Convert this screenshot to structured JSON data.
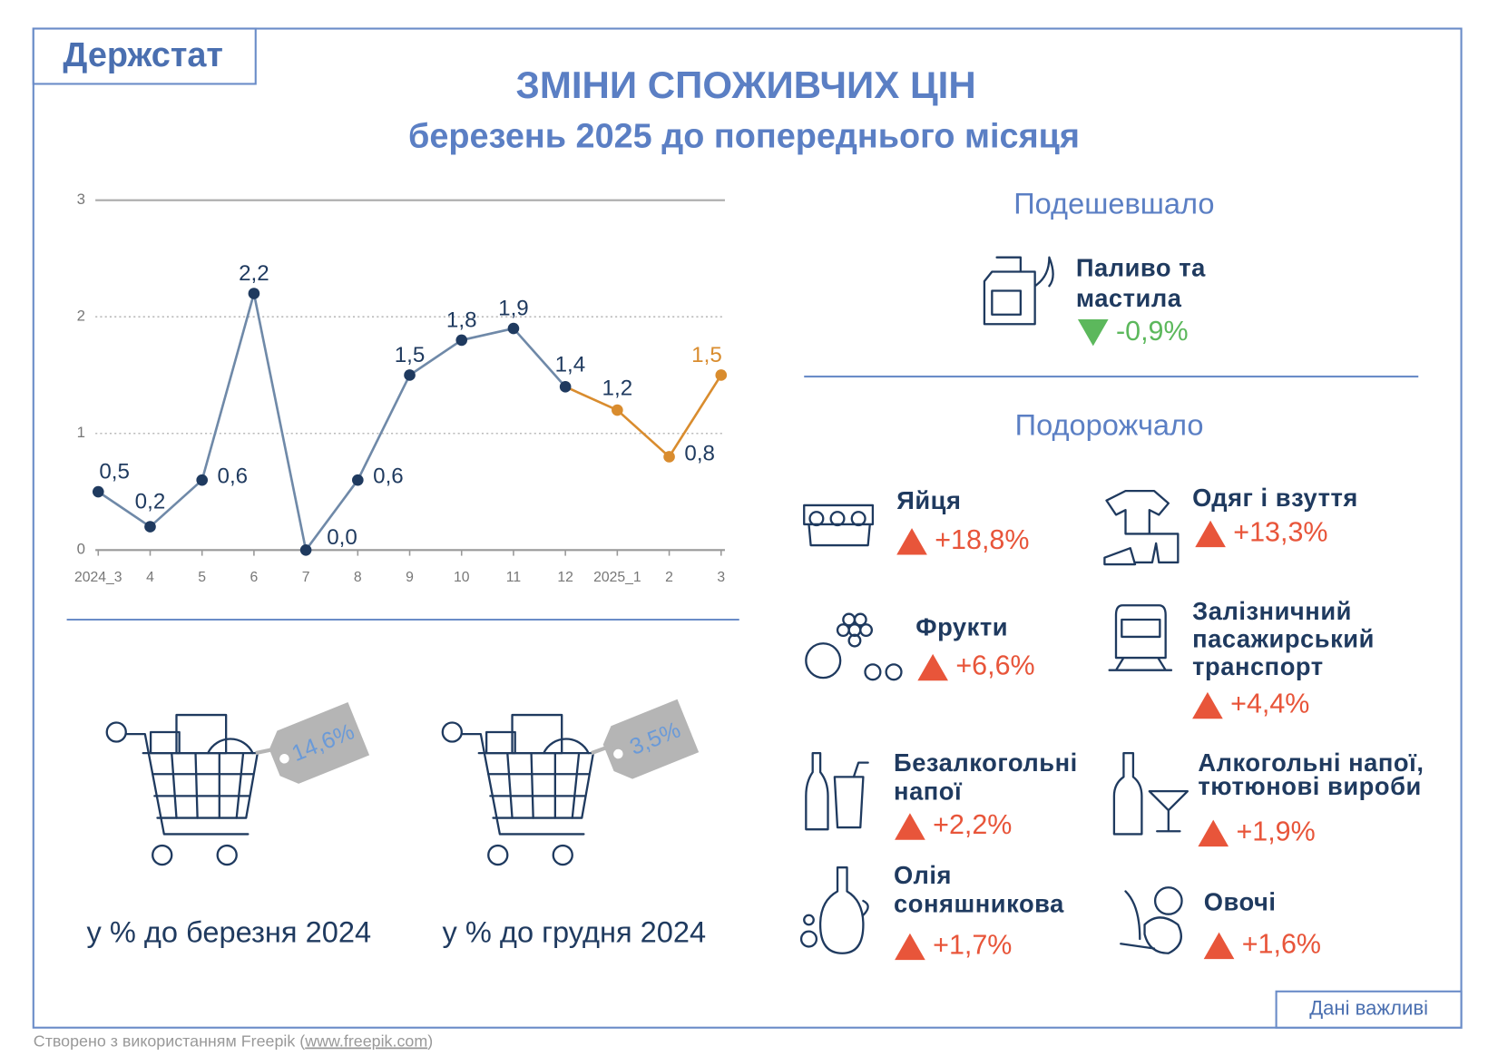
{
  "header": {
    "logo": "Держстат",
    "title": "ЗМІНИ СПОЖИВЧИХ ЦІН",
    "subtitle": "березень 2025 до попереднього місяця"
  },
  "chart_data": {
    "type": "line",
    "categories": [
      "2024_3",
      "4",
      "5",
      "6",
      "7",
      "8",
      "9",
      "10",
      "11",
      "12",
      "2025_1",
      "2",
      "3"
    ],
    "series": [
      {
        "color": "#1f3a5f",
        "line_color": "#6f89a8",
        "values": [
          0.5,
          0.2,
          0.6,
          2.2,
          0.0,
          0.6,
          1.5,
          1.8,
          1.9,
          1.4,
          1.2,
          0.8,
          1.5
        ],
        "value_labels": [
          "0,5",
          "0,2",
          "0,6",
          "2,2",
          "0,0",
          "0,6",
          "1,5",
          "1,8",
          "1,9",
          "1,4",
          "1,2",
          "0,8",
          "1,5"
        ],
        "point_colors": [
          "#1f3a5f",
          "#1f3a5f",
          "#1f3a5f",
          "#1f3a5f",
          "#1f3a5f",
          "#1f3a5f",
          "#1f3a5f",
          "#1f3a5f",
          "#1f3a5f",
          "#1f3a5f",
          "#d98c2e",
          "#d98c2e",
          "#d98c2e"
        ],
        "label_colors": [
          "#1f3a5f",
          "#1f3a5f",
          "#1f3a5f",
          "#1f3a5f",
          "#1f3a5f",
          "#1f3a5f",
          "#1f3a5f",
          "#1f3a5f",
          "#1f3a5f",
          "#1f3a5f",
          "#1f3a5f",
          "#1f3a5f",
          "#d98c2e"
        ]
      }
    ],
    "ylim": [
      0,
      3
    ],
    "yticks": [
      0,
      1,
      2,
      3
    ],
    "grid": true
  },
  "annual": {
    "value_label": "14,6%",
    "caption": "у % до березня 2024"
  },
  "since_december": {
    "value_label": "3,5%",
    "caption": "у % до грудня 2024"
  },
  "price_falls": {
    "title": "Подешевшало",
    "items": [
      {
        "name_lines": [
          "Паливо та",
          "мастила"
        ],
        "change": "-0,9%"
      }
    ]
  },
  "price_rises": {
    "title": "Подорожчало",
    "items": [
      {
        "name_lines": [
          "Яйця"
        ],
        "change": "+18,8%"
      },
      {
        "name_lines": [
          "Одяг і взуття"
        ],
        "change": "+13,3%"
      },
      {
        "name_lines": [
          "Фрукти"
        ],
        "change": "+6,6%"
      },
      {
        "name_lines": [
          "Залізничний",
          "пасажирський",
          "транспорт"
        ],
        "change": "+4,4%"
      },
      {
        "name_lines": [
          "Безалкогольні",
          "напої"
        ],
        "change": "+2,2%"
      },
      {
        "name_lines": [
          "Алкогольні напої,",
          "тютюнові вироби"
        ],
        "change": "+1,9%"
      },
      {
        "name_lines": [
          "Олія",
          "соняшникова"
        ],
        "change": "+1,7%"
      },
      {
        "name_lines": [
          "Овочі"
        ],
        "change": "+1,6%"
      }
    ]
  },
  "footer_button": "Дані важливі",
  "credit": {
    "text": "Створено з використанням Freepik (",
    "link": "www.freepik.com",
    "end": ")"
  }
}
